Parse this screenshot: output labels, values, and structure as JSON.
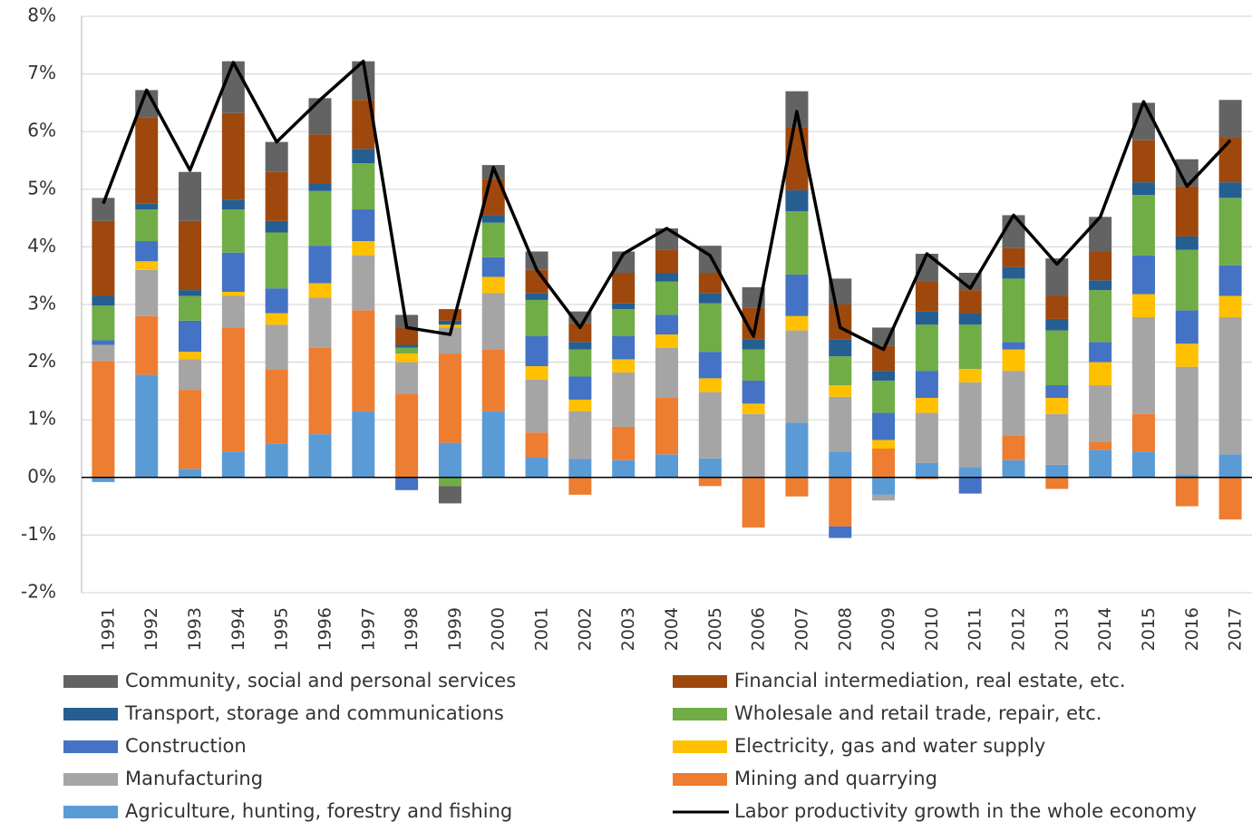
{
  "chart_data": {
    "type": "bar",
    "stacked": true,
    "categories": [
      "1991",
      "1992",
      "1993",
      "1994",
      "1995",
      "1996",
      "1997",
      "1998",
      "1999",
      "2000",
      "2001",
      "2002",
      "2003",
      "2004",
      "2005",
      "2006",
      "2007",
      "2008",
      "2009",
      "2010",
      "2011",
      "2012",
      "2013",
      "2014",
      "2015",
      "2016",
      "2017"
    ],
    "ylim": [
      -2,
      8
    ],
    "yticks": [
      {
        "value": -2,
        "label": "-2%"
      },
      {
        "value": -1,
        "label": "-1%"
      },
      {
        "value": 0,
        "label": "0%"
      },
      {
        "value": 1,
        "label": "1%"
      },
      {
        "value": 2,
        "label": "2%"
      },
      {
        "value": 3,
        "label": "3%"
      },
      {
        "value": 4,
        "label": "4%"
      },
      {
        "value": 5,
        "label": "5%"
      },
      {
        "value": 6,
        "label": "6%"
      },
      {
        "value": 7,
        "label": "7%"
      },
      {
        "value": 8,
        "label": "8%"
      }
    ],
    "grid": true,
    "series": [
      {
        "name": "Agriculture, hunting, forestry and fishing",
        "color": "#5b9bd5",
        "values": [
          -0.08,
          1.78,
          0.15,
          0.45,
          0.58,
          0.75,
          1.15,
          0,
          0.6,
          1.15,
          0.35,
          0.32,
          0.3,
          0.4,
          0.33,
          0,
          0.95,
          0.45,
          -0.3,
          0.25,
          0.18,
          0.3,
          0.22,
          0.48,
          0.45,
          0.05,
          0.4
        ]
      },
      {
        "name": "Mining and quarrying",
        "color": "#ed7d31",
        "values": [
          2.02,
          1.02,
          1.37,
          2.15,
          1.3,
          1.5,
          1.75,
          1.45,
          1.55,
          1.07,
          0.43,
          -0.3,
          0.58,
          0.98,
          -0.15,
          -0.87,
          -0.33,
          -0.85,
          0.5,
          -0.03,
          0,
          0.42,
          -0.2,
          0.14,
          0.65,
          -0.5,
          -0.73
        ]
      },
      {
        "name": "Manufacturing",
        "color": "#a5a5a5",
        "values": [
          0.28,
          0.8,
          0.53,
          0.55,
          0.77,
          0.87,
          0.95,
          0.55,
          0.45,
          0.98,
          0.92,
          0.83,
          0.94,
          0.87,
          1.15,
          1.1,
          1.6,
          0.95,
          -0.1,
          0.87,
          1.47,
          1.13,
          0.88,
          0.98,
          1.68,
          1.87,
          2.38
        ]
      },
      {
        "name": "Electricity, gas and water supply",
        "color": "#ffc000",
        "values": [
          0,
          0.15,
          0.13,
          0.07,
          0.2,
          0.25,
          0.25,
          0.15,
          0.05,
          0.28,
          0.23,
          0.2,
          0.23,
          0.23,
          0.24,
          0.18,
          0.25,
          0.2,
          0.15,
          0.26,
          0.23,
          0.37,
          0.28,
          0.4,
          0.4,
          0.4,
          0.37
        ]
      },
      {
        "name": "Construction",
        "color": "#4472c4",
        "values": [
          0.08,
          0.35,
          0.54,
          0.68,
          0.43,
          0.65,
          0.55,
          -0.22,
          0,
          0.34,
          0.52,
          0.4,
          0.4,
          0.34,
          0.46,
          0.4,
          0.72,
          -0.2,
          0.47,
          0.47,
          -0.28,
          0.13,
          0.22,
          0.35,
          0.67,
          0.58,
          0.53
        ]
      },
      {
        "name": "Wholesale and retail trade, repair, etc.",
        "color": "#70ad47",
        "values": [
          0.6,
          0.55,
          0.43,
          0.75,
          0.97,
          0.95,
          0.8,
          0.1,
          -0.15,
          0.6,
          0.63,
          0.47,
          0.47,
          0.58,
          0.84,
          0.54,
          1.1,
          0.5,
          0.56,
          0.8,
          0.77,
          1.1,
          0.95,
          0.9,
          1.05,
          1.05,
          1.17
        ]
      },
      {
        "name": "Transport, storage and communications",
        "color": "#255e91",
        "values": [
          0.17,
          0.1,
          0.1,
          0.17,
          0.2,
          0.13,
          0.25,
          0.05,
          0.07,
          0.13,
          0.12,
          0.13,
          0.1,
          0.15,
          0.18,
          0.18,
          0.36,
          0.3,
          0.17,
          0.23,
          0.2,
          0.2,
          0.2,
          0.17,
          0.22,
          0.23,
          0.27
        ]
      },
      {
        "name": "Financial intermediation, real estate, etc.",
        "color": "#9e480e",
        "values": [
          1.3,
          1.5,
          1.2,
          1.5,
          0.85,
          0.85,
          0.85,
          0.3,
          0.2,
          0.63,
          0.4,
          0.33,
          0.53,
          0.4,
          0.35,
          0.55,
          1.1,
          0.6,
          0.43,
          0.52,
          0.4,
          0.33,
          0.4,
          0.5,
          0.73,
          0.87,
          0.78
        ]
      },
      {
        "name": "Community, social and personal services",
        "color": "#636363",
        "values": [
          0.4,
          0.47,
          0.85,
          0.9,
          0.52,
          0.63,
          0.67,
          0.22,
          -0.3,
          0.24,
          0.32,
          0.2,
          0.37,
          0.37,
          0.47,
          0.35,
          0.62,
          0.45,
          0.32,
          0.48,
          0.3,
          0.57,
          0.65,
          0.6,
          0.65,
          0.47,
          0.65
        ]
      }
    ],
    "line": {
      "name": "Labor productivity growth in the whole economy",
      "color": "#000000",
      "values": [
        4.75,
        6.72,
        5.33,
        7.2,
        5.82,
        6.55,
        7.22,
        2.6,
        2.48,
        5.38,
        3.6,
        2.6,
        3.88,
        4.32,
        3.85,
        2.45,
        6.35,
        2.6,
        2.22,
        3.88,
        3.28,
        4.55,
        3.7,
        4.52,
        6.52,
        5.05,
        5.85
      ]
    }
  }
}
